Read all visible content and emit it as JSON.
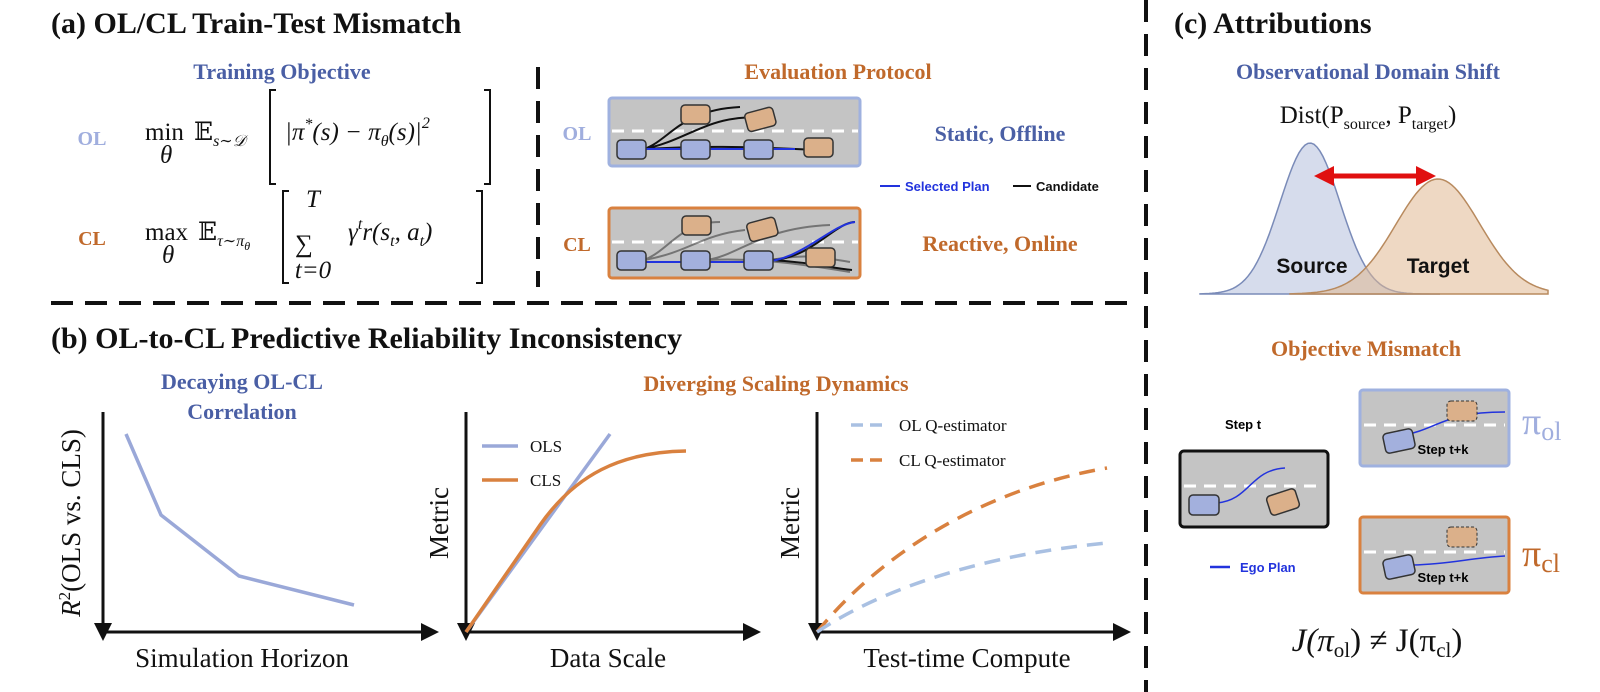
{
  "panel_a": {
    "title": "(a) OL/CL Train-Test Mismatch",
    "training_objective": {
      "heading": "Training Objective",
      "ol_label": "OL",
      "cl_label": "CL",
      "ol_formula": [
        "min",
        "θ",
        "𝔼",
        "s∼𝒟",
        "|π",
        "*",
        "(s) − π",
        "θ",
        "(s)|",
        "2"
      ],
      "cl_formula": [
        "max",
        "θ",
        "𝔼",
        "τ∼π",
        "θ",
        "∑",
        "T",
        "t=0",
        "γ",
        "t",
        "r(s",
        "t",
        ", a",
        "t",
        ")"
      ]
    },
    "evaluation_protocol": {
      "heading": "Evaluation Protocol",
      "ol_label": "OL",
      "cl_label": "CL",
      "ol_desc": "Static, Offline",
      "cl_desc": "Reactive, Online",
      "legend": [
        "Selected Plan",
        "Candidate"
      ]
    }
  },
  "panel_b": {
    "title": "(b) OL-to-CL Predictive Reliability Inconsistency",
    "correlation": {
      "heading": [
        "Decaying OL-CL",
        "Correlation"
      ],
      "y_label": [
        "R",
        "2",
        "(OLS vs. CLS)"
      ],
      "x_label": "Simulation Horizon"
    },
    "scaling_heading": "Diverging Scaling Dynamics",
    "data_scale": {
      "y_label": "Metric",
      "x_label": "Data Scale",
      "legend": [
        "OLS",
        "CLS"
      ]
    },
    "test_time": {
      "y_label": "Metric",
      "x_label": "Test-time Compute",
      "legend": [
        "OL Q-estimator",
        "CL Q-estimator"
      ]
    }
  },
  "panel_c": {
    "title": "(c) Attributions",
    "domain_shift": {
      "heading": "Observational Domain Shift",
      "formula": [
        "Dist(P",
        "source",
        ", P",
        "target",
        ")"
      ],
      "source": "Source",
      "target": "Target"
    },
    "objective_mismatch": {
      "heading": "Objective Mismatch",
      "step_t": "Step t",
      "step_tk_ol": "Step t+k",
      "step_tk_cl": "Step t+k",
      "ego_plan": "Ego Plan",
      "pi_ol": [
        "π",
        "ol"
      ],
      "pi_cl": [
        "π",
        "cl"
      ],
      "formula": [
        "J(π",
        "ol",
        ") ≠ J(π",
        "cl",
        ")"
      ]
    }
  }
}
